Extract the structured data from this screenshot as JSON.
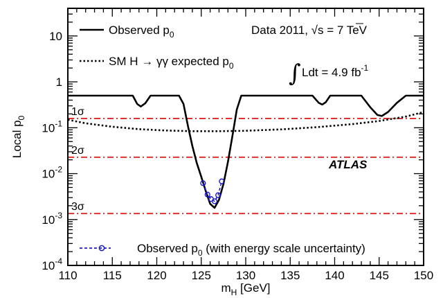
{
  "chart_data": {
    "type": "line",
    "xlabel": "m",
    "xlabel_sub": "H",
    "xlabel_unit": " [GeV]",
    "ylabel": "Local p",
    "ylabel_sub": "0",
    "x_scale": "linear",
    "y_scale": "log",
    "xlim": [
      110,
      150
    ],
    "ylim": [
      0.0001,
      40
    ],
    "x_ticks": [
      110,
      115,
      120,
      125,
      130,
      135,
      140,
      145,
      150
    ],
    "y_ticks": [
      {
        "value": 0.0001,
        "base": "10",
        "exp": "-4"
      },
      {
        "value": 0.001,
        "base": "10",
        "exp": "-3"
      },
      {
        "value": 0.01,
        "base": "10",
        "exp": "-2"
      },
      {
        "value": 0.1,
        "base": "10",
        "exp": "-1"
      },
      {
        "value": 1,
        "base": "1",
        "exp": ""
      },
      {
        "value": 10,
        "base": "10",
        "exp": ""
      }
    ],
    "grid": false,
    "legend_position": "top-left",
    "series": [
      {
        "name": "Observed p",
        "name_sub": "0",
        "style": "solid",
        "color": "#000000",
        "points": [
          [
            110,
            0.5
          ],
          [
            117.3,
            0.5
          ],
          [
            117.8,
            0.33
          ],
          [
            118.2,
            0.29
          ],
          [
            118.7,
            0.34
          ],
          [
            119.3,
            0.5
          ],
          [
            122.5,
            0.5
          ],
          [
            123,
            0.33
          ],
          [
            123.5,
            0.11
          ],
          [
            124,
            0.04
          ],
          [
            124.5,
            0.017
          ],
          [
            125,
            0.0085
          ],
          [
            125.5,
            0.0042
          ],
          [
            126,
            0.0022
          ],
          [
            126.5,
            0.0018
          ],
          [
            127,
            0.0027
          ],
          [
            127.5,
            0.006
          ],
          [
            128,
            0.018
          ],
          [
            128.5,
            0.065
          ],
          [
            129,
            0.25
          ],
          [
            129.5,
            0.5
          ],
          [
            137.5,
            0.5
          ],
          [
            138.2,
            0.35
          ],
          [
            138.6,
            0.32
          ],
          [
            139,
            0.36
          ],
          [
            139.5,
            0.5
          ],
          [
            143,
            0.5
          ],
          [
            144,
            0.28
          ],
          [
            144.8,
            0.19
          ],
          [
            145.3,
            0.18
          ],
          [
            146,
            0.22
          ],
          [
            147,
            0.35
          ],
          [
            148,
            0.5
          ],
          [
            150,
            0.5
          ]
        ]
      },
      {
        "name": "SM H → γγ expected p",
        "name_sub": "0",
        "style": "dotted",
        "color": "#000000",
        "points": [
          [
            110,
            0.15
          ],
          [
            112,
            0.125
          ],
          [
            115,
            0.105
          ],
          [
            118,
            0.093
          ],
          [
            121,
            0.087
          ],
          [
            124,
            0.084
          ],
          [
            127,
            0.084
          ],
          [
            130,
            0.086
          ],
          [
            134,
            0.092
          ],
          [
            138,
            0.103
          ],
          [
            142,
            0.12
          ],
          [
            145,
            0.14
          ],
          [
            148,
            0.175
          ],
          [
            150,
            0.22
          ]
        ]
      },
      {
        "name": "Observed p",
        "name_sub": "0",
        "name_suffix": " (with energy scale uncertainty)",
        "style": "dashed-markers",
        "color": "#1a1acc",
        "points": [
          [
            125.2,
            0.0062
          ],
          [
            125.7,
            0.0035
          ],
          [
            126.1,
            0.0028
          ],
          [
            126.5,
            0.0025
          ],
          [
            126.9,
            0.0034
          ],
          [
            127.3,
            0.0068
          ]
        ]
      }
    ],
    "reference_lines": [
      {
        "label": "1σ",
        "value": 0.159,
        "color": "#e03030"
      },
      {
        "label": "2σ",
        "value": 0.0228,
        "color": "#e03030"
      },
      {
        "label": "3σ",
        "value": 0.00135,
        "color": "#e03030"
      }
    ],
    "annotations": {
      "data_label": "Data 2011, ",
      "sqrt_s": "√s",
      "energy": " = 7 TeV",
      "lumi_integral": "∫",
      "lumi_text": "Ldt = 4.9 fb",
      "lumi_exp": "-1",
      "experiment": "ATLAS"
    }
  }
}
